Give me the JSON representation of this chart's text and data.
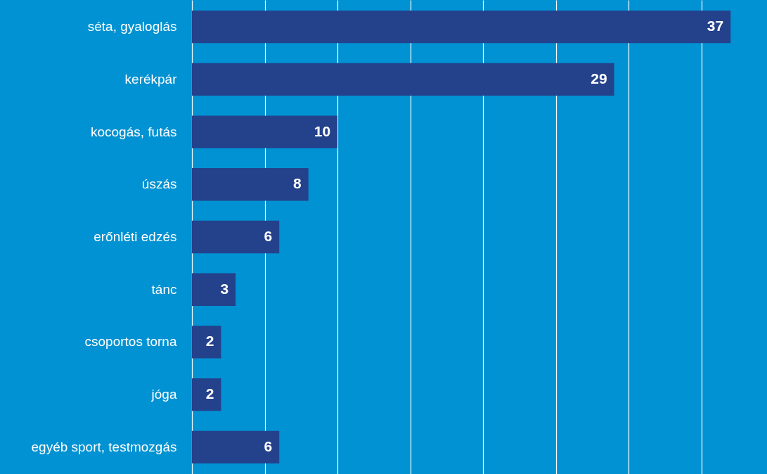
{
  "chart_data": {
    "type": "bar",
    "orientation": "horizontal",
    "categories": [
      "séta, gyaloglás",
      "kerékpár",
      "kocogás, futás",
      "úszás",
      "erőnléti edzés",
      "tánc",
      "csoportos torna",
      "jóga",
      "egyéb sport, testmozgás"
    ],
    "values": [
      37,
      29,
      10,
      8,
      6,
      3,
      2,
      2,
      6
    ],
    "color": "#24418c",
    "data_labels": true,
    "xlim": [
      0,
      39.5
    ],
    "xticks": [
      {
        "value": 0,
        "label": null
      },
      {
        "value": 5,
        "label": null
      },
      {
        "value": 10,
        "label": null
      },
      {
        "value": 15,
        "label": null
      },
      {
        "value": 20,
        "label": null
      },
      {
        "value": 25,
        "label": null
      },
      {
        "value": 30,
        "label": null
      },
      {
        "value": 35,
        "label": null
      }
    ],
    "tick_labels": "y",
    "grid": "x"
  }
}
